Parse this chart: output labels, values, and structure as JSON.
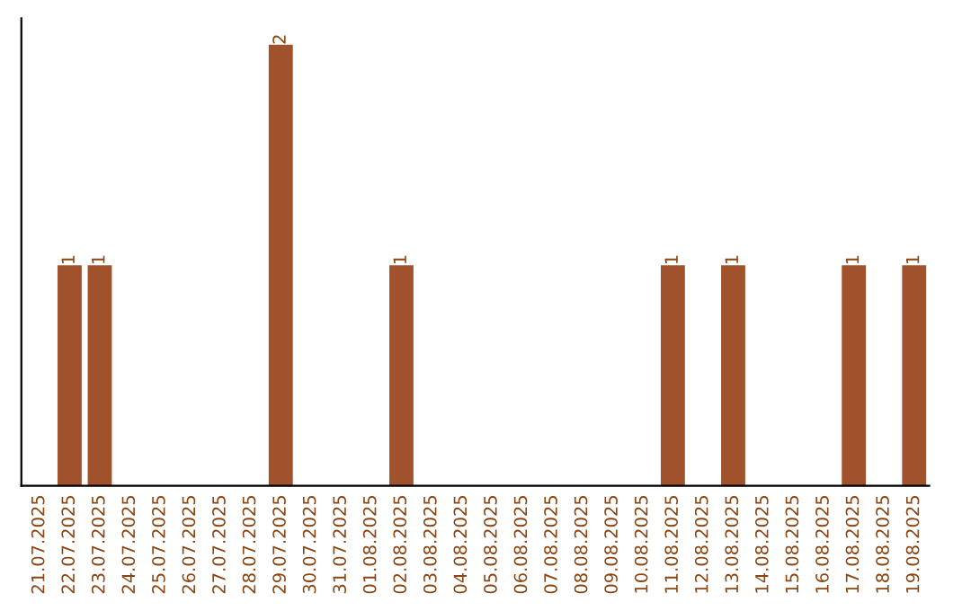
{
  "chart_data": {
    "type": "bar",
    "categories": [
      "21.07.2025",
      "22.07.2025",
      "23.07.2025",
      "24.07.2025",
      "25.07.2025",
      "26.07.2025",
      "27.07.2025",
      "28.07.2025",
      "29.07.2025",
      "30.07.2025",
      "31.07.2025",
      "01.08.2025",
      "02.08.2025",
      "03.08.2025",
      "04.08.2025",
      "05.08.2025",
      "06.08.2025",
      "07.08.2025",
      "08.08.2025",
      "09.08.2025",
      "10.08.2025",
      "11.08.2025",
      "12.08.2025",
      "13.08.2025",
      "14.08.2025",
      "15.08.2025",
      "16.08.2025",
      "17.08.2025",
      "18.08.2025",
      "19.08.2025"
    ],
    "values": [
      0,
      1,
      1,
      0,
      0,
      0,
      0,
      0,
      2,
      0,
      0,
      0,
      1,
      0,
      0,
      0,
      0,
      0,
      0,
      0,
      0,
      1,
      0,
      1,
      0,
      0,
      0,
      1,
      0,
      1
    ],
    "value_labels": [
      null,
      "1",
      "1",
      null,
      null,
      null,
      null,
      null,
      "2",
      null,
      null,
      null,
      "1",
      null,
      null,
      null,
      null,
      null,
      null,
      null,
      null,
      "1",
      null,
      "1",
      null,
      null,
      null,
      "1",
      null,
      "1"
    ],
    "color": "#a0522d",
    "tick_labels": "x",
    "grid": false
  }
}
